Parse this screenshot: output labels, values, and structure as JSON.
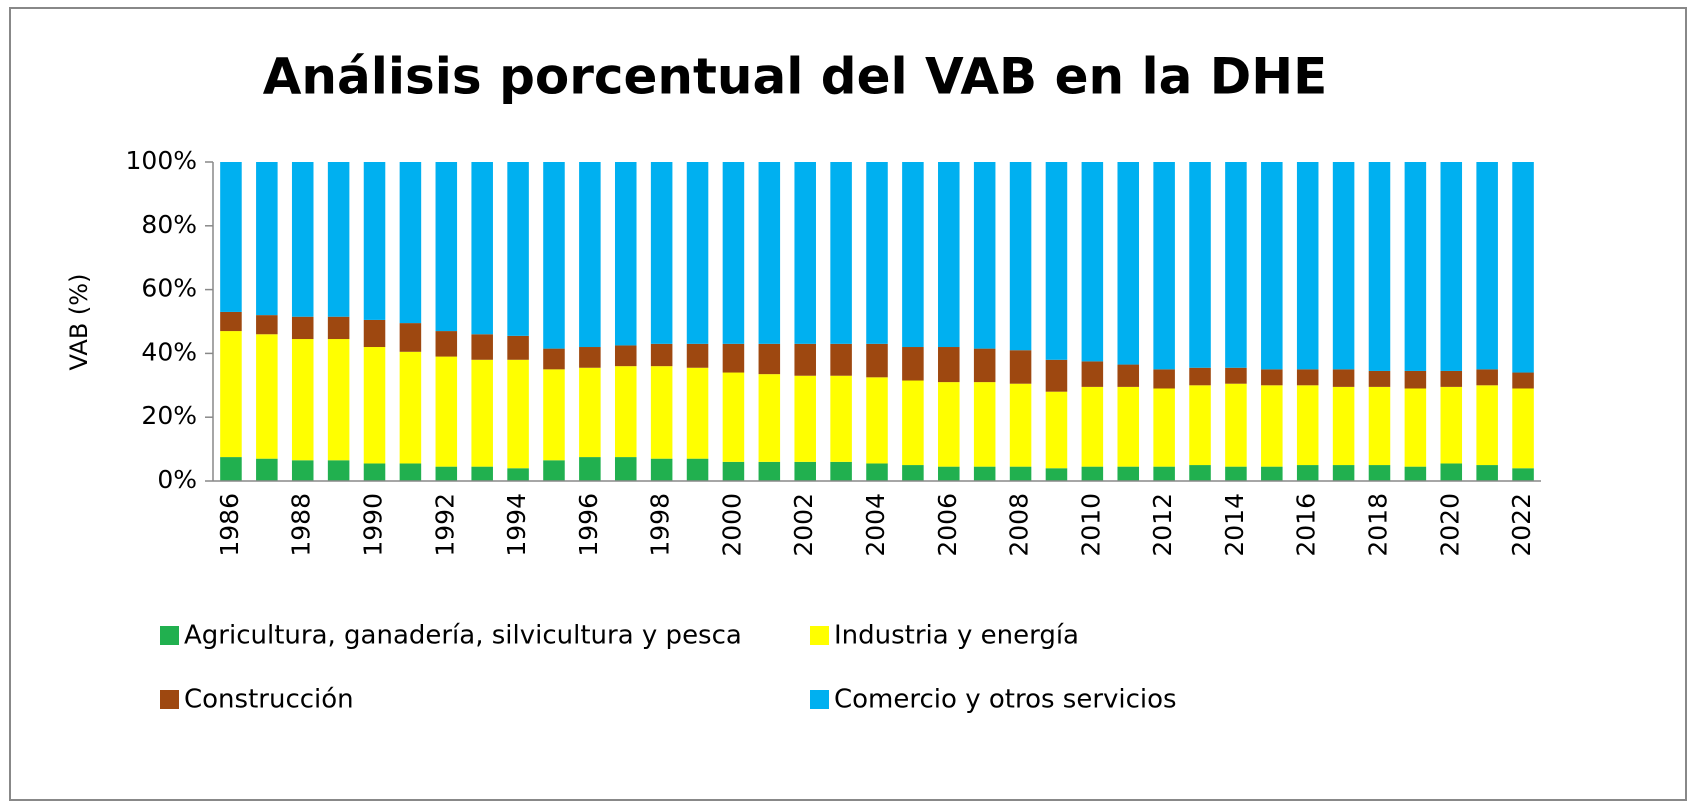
{
  "chart_data": {
    "type": "stacked_bar",
    "title": "Análisis porcentual del VAB en la DHE",
    "y_label": "VAB (%)",
    "categories": [
      "1986",
      null,
      "1988",
      null,
      "1990",
      null,
      "1992",
      null,
      "1994",
      null,
      "1996",
      null,
      "1998",
      null,
      "2000",
      null,
      "2002",
      null,
      "2004",
      null,
      "2006",
      null,
      "2008",
      null,
      "2010",
      null,
      "2012",
      null,
      "2014",
      null,
      "2016",
      null,
      "2018",
      null,
      "2020",
      null,
      "2022"
    ],
    "series": [
      {
        "name": "Agricultura, ganadería, silvicultura y pesca",
        "color": "#21b04f",
        "values": [
          7.5,
          7,
          6.5,
          6.5,
          5.5,
          5.5,
          4.5,
          4.5,
          4,
          6.5,
          7.5,
          7.5,
          7,
          7,
          6,
          6,
          6,
          6,
          5.5,
          5,
          4.5,
          4.5,
          4.5,
          4,
          4.5,
          4.5,
          4.5,
          5,
          4.5,
          4.5,
          5,
          5,
          5,
          4.5,
          5.5,
          5,
          4
        ]
      },
      {
        "name": "Industria y energía",
        "color": "#ffff00",
        "values": [
          39.5,
          39,
          38,
          38,
          36.5,
          35,
          34.5,
          33.5,
          34,
          28.5,
          28,
          28.5,
          29,
          28.5,
          28,
          27.5,
          27,
          27,
          27,
          26.5,
          26.5,
          26.5,
          26,
          24,
          25,
          25,
          24.5,
          25,
          26,
          25.5,
          25,
          24.5,
          24.5,
          24.5,
          24,
          25,
          25
        ]
      },
      {
        "name": "Construcción",
        "color": "#9e4810",
        "values": [
          6,
          6,
          7,
          7,
          8.5,
          9,
          8,
          8,
          7.5,
          6.5,
          6.5,
          6.5,
          7,
          7.5,
          9,
          9.5,
          10,
          10,
          10.5,
          10.5,
          11,
          10.5,
          10.5,
          10,
          8,
          7,
          6,
          5.5,
          5,
          5,
          5,
          5.5,
          5,
          5.5,
          5,
          5,
          5
        ]
      },
      {
        "name": "Comercio y otros servicios",
        "color": "#00b0f0",
        "values": [
          47,
          48,
          48.5,
          48.5,
          49.5,
          50.5,
          53,
          54,
          54.5,
          58.5,
          58,
          57.5,
          57,
          57,
          57,
          57,
          57,
          57,
          57,
          58,
          58,
          58.5,
          59,
          62,
          62.5,
          63.5,
          65,
          64.5,
          64.5,
          65,
          65,
          65,
          65.5,
          65.5,
          65.5,
          65,
          66
        ]
      }
    ],
    "ylim": [
      0,
      100
    ],
    "yticks": [
      {
        "value": 0,
        "label": "0%"
      },
      {
        "value": 20,
        "label": "20%"
      },
      {
        "value": 40,
        "label": "40%"
      },
      {
        "value": 60,
        "label": "60%"
      },
      {
        "value": 80,
        "label": "80%"
      },
      {
        "value": 100,
        "label": "100%"
      }
    ],
    "legend": "bottom"
  }
}
